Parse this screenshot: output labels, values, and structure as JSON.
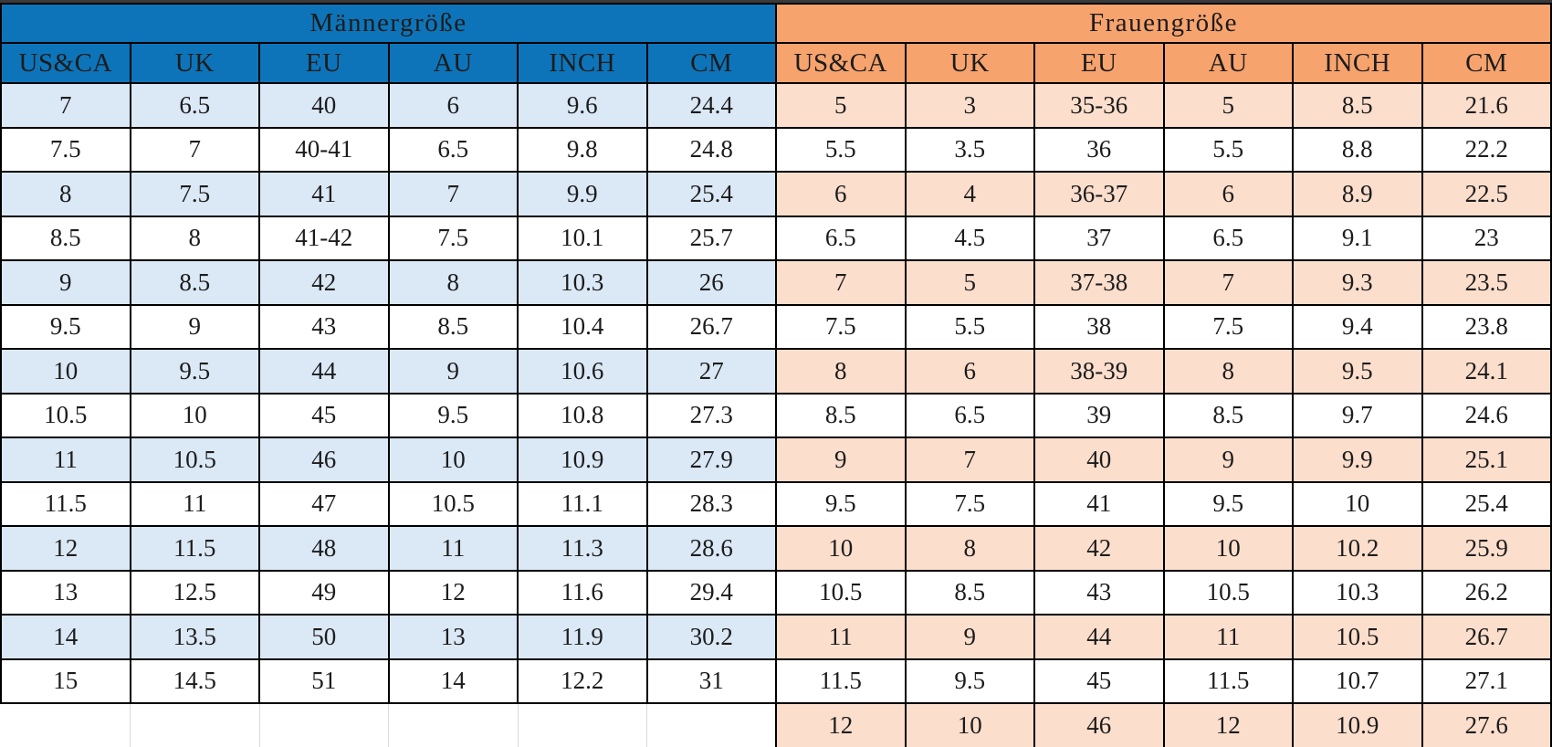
{
  "colors": {
    "men_header": "#0d74b9",
    "men_row_tint": "#dbe8f6",
    "women_header": "#f7a36e",
    "women_row_tint": "#fcdecd",
    "grid_line": "#000000",
    "faint_line": "#d9d9d9",
    "top_bar": "#3a3a3a",
    "text": "#1c1c1c"
  },
  "chart_data": {
    "type": "table",
    "tables": [
      {
        "title": "Männergröße",
        "columns": [
          "US&CA",
          "UK",
          "EU",
          "AU",
          "INCH",
          "CM"
        ],
        "rows": [
          [
            "7",
            "6.5",
            "40",
            "6",
            "9.6",
            "24.4"
          ],
          [
            "7.5",
            "7",
            "40-41",
            "6.5",
            "9.8",
            "24.8"
          ],
          [
            "8",
            "7.5",
            "41",
            "7",
            "9.9",
            "25.4"
          ],
          [
            "8.5",
            "8",
            "41-42",
            "7.5",
            "10.1",
            "25.7"
          ],
          [
            "9",
            "8.5",
            "42",
            "8",
            "10.3",
            "26"
          ],
          [
            "9.5",
            "9",
            "43",
            "8.5",
            "10.4",
            "26.7"
          ],
          [
            "10",
            "9.5",
            "44",
            "9",
            "10.6",
            "27"
          ],
          [
            "10.5",
            "10",
            "45",
            "9.5",
            "10.8",
            "27.3"
          ],
          [
            "11",
            "10.5",
            "46",
            "10",
            "10.9",
            "27.9"
          ],
          [
            "11.5",
            "11",
            "47",
            "10.5",
            "11.1",
            "28.3"
          ],
          [
            "12",
            "11.5",
            "48",
            "11",
            "11.3",
            "28.6"
          ],
          [
            "13",
            "12.5",
            "49",
            "12",
            "11.6",
            "29.4"
          ],
          [
            "14",
            "13.5",
            "50",
            "13",
            "11.9",
            "30.2"
          ],
          [
            "15",
            "14.5",
            "51",
            "14",
            "12.2",
            "31"
          ]
        ],
        "trailing_empty_row": true
      },
      {
        "title": "Frauengröße",
        "columns": [
          "US&CA",
          "UK",
          "EU",
          "AU",
          "INCH",
          "CM"
        ],
        "rows": [
          [
            "5",
            "3",
            "35-36",
            "5",
            "8.5",
            "21.6"
          ],
          [
            "5.5",
            "3.5",
            "36",
            "5.5",
            "8.8",
            "22.2"
          ],
          [
            "6",
            "4",
            "36-37",
            "6",
            "8.9",
            "22.5"
          ],
          [
            "6.5",
            "4.5",
            "37",
            "6.5",
            "9.1",
            "23"
          ],
          [
            "7",
            "5",
            "37-38",
            "7",
            "9.3",
            "23.5"
          ],
          [
            "7.5",
            "5.5",
            "38",
            "7.5",
            "9.4",
            "23.8"
          ],
          [
            "8",
            "6",
            "38-39",
            "8",
            "9.5",
            "24.1"
          ],
          [
            "8.5",
            "6.5",
            "39",
            "8.5",
            "9.7",
            "24.6"
          ],
          [
            "9",
            "7",
            "40",
            "9",
            "9.9",
            "25.1"
          ],
          [
            "9.5",
            "7.5",
            "41",
            "9.5",
            "10",
            "25.4"
          ],
          [
            "10",
            "8",
            "42",
            "10",
            "10.2",
            "25.9"
          ],
          [
            "10.5",
            "8.5",
            "43",
            "10.5",
            "10.3",
            "26.2"
          ],
          [
            "11",
            "9",
            "44",
            "11",
            "10.5",
            "26.7"
          ],
          [
            "11.5",
            "9.5",
            "45",
            "11.5",
            "10.7",
            "27.1"
          ],
          [
            "12",
            "10",
            "46",
            "12",
            "10.9",
            "27.6"
          ]
        ]
      }
    ]
  }
}
